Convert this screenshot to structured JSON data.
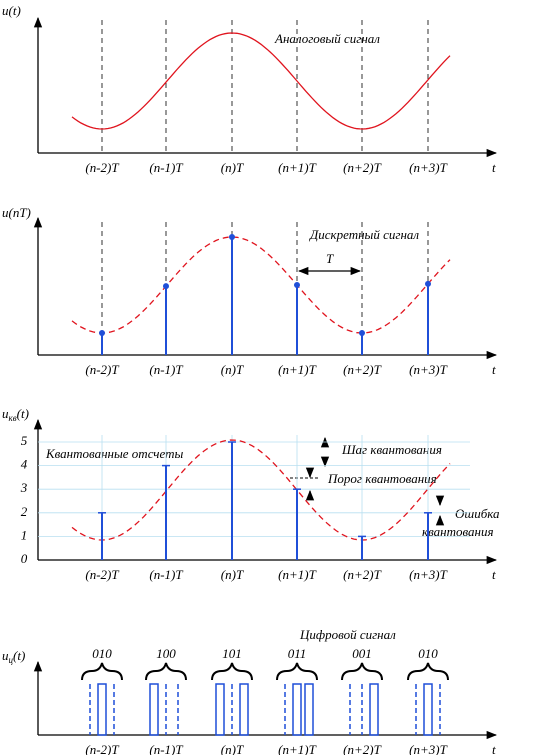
{
  "time_labels": [
    "(n-2)T",
    "(n-1)T",
    "(n)T",
    "(n+1)T",
    "(n+2)T",
    "(n+3)T"
  ],
  "t_label": "t",
  "analog": {
    "y_label": "u(t)",
    "caption": "Аналоговый сигнал"
  },
  "discrete": {
    "y_label": "u(nT)",
    "caption": "Дискретный сигнал",
    "period": "T"
  },
  "quantized": {
    "y_label": {
      "u": "u",
      "sub": "кв",
      "arg": "(t)"
    },
    "yticks": [
      0,
      1,
      2,
      3,
      4,
      5
    ],
    "levels": [
      2,
      4,
      5,
      3,
      1,
      2
    ],
    "samples_caption": "Квантованные отсчеты",
    "step_caption": "Шаг квантования",
    "threshold_caption": "Порог квантования",
    "error_caption": [
      "Ошибка",
      "квантования"
    ]
  },
  "digital": {
    "y_label": {
      "u": "u",
      "sub": "ц",
      "arg": "(t)"
    },
    "caption": "Цифровой сигнал",
    "codes": [
      "010",
      "100",
      "101",
      "011",
      "001",
      "010"
    ]
  }
}
